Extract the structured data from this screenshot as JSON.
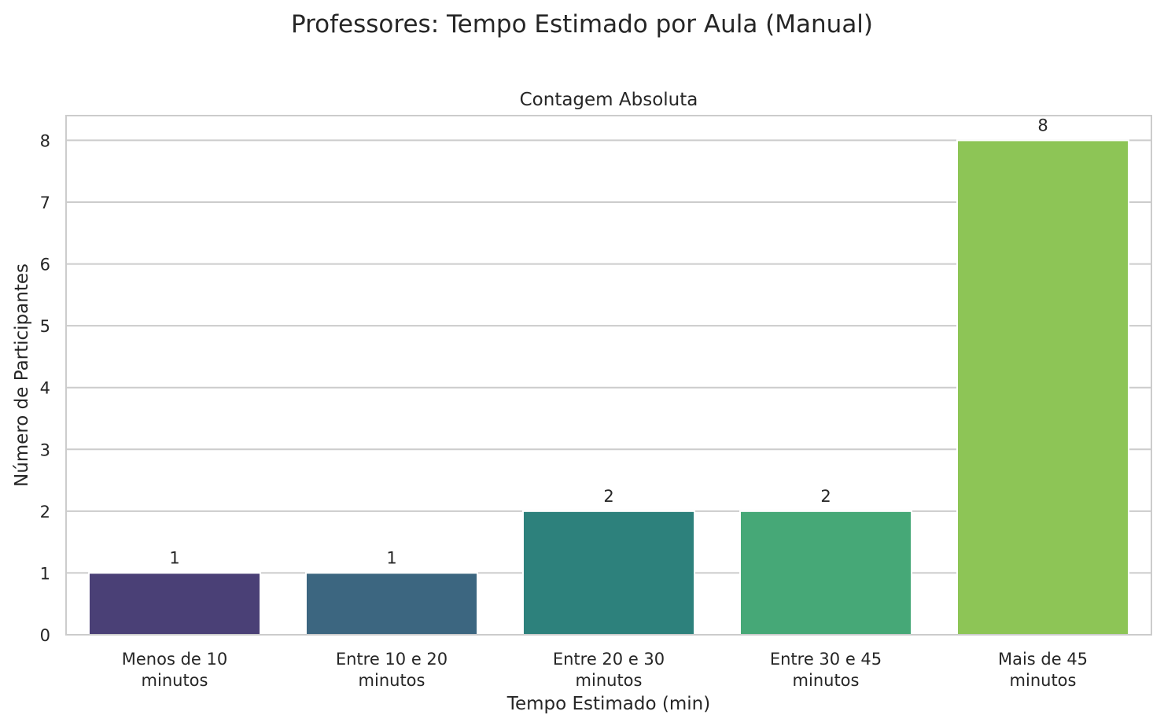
{
  "chart_data": {
    "type": "bar",
    "title": "Professores: Tempo Estimado por Aula (Manual)",
    "subtitle": "Contagem Absoluta",
    "xlabel": "Tempo Estimado (min)",
    "ylabel": "Número de Participantes",
    "categories": [
      [
        "Menos de 10",
        "minutos"
      ],
      [
        "Entre 10 e 20",
        "minutos"
      ],
      [
        "Entre 20 e 30",
        "minutos"
      ],
      [
        "Entre 30 e 45",
        "minutos"
      ],
      [
        "Mais de 45",
        "minutos"
      ]
    ],
    "values": [
      1,
      1,
      2,
      2,
      8
    ],
    "bar_labels": [
      "1",
      "1",
      "2",
      "2",
      "8"
    ],
    "colors": [
      "#4a4076",
      "#3c6680",
      "#2d817c",
      "#46a877",
      "#8dc556"
    ],
    "ylim": [
      0,
      8.4
    ],
    "yticks": [
      0,
      1,
      2,
      3,
      4,
      5,
      6,
      7,
      8
    ],
    "grid": true,
    "grid_color": "#cccccc",
    "frame_color": "#cccccc"
  }
}
